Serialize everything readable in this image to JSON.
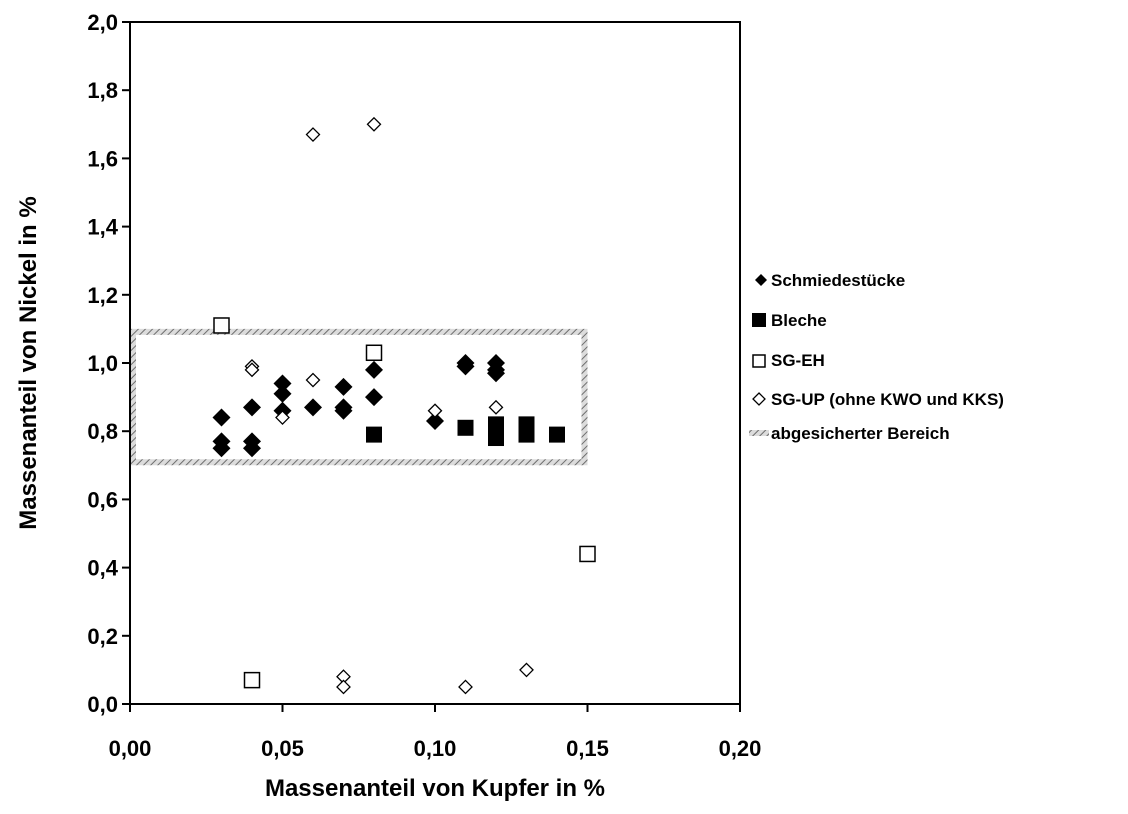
{
  "chart_data": {
    "type": "scatter",
    "title": "",
    "xlabel": "Massenanteil von Kupfer in %",
    "ylabel": "Massenanteil von Nickel in %",
    "xlim": [
      0,
      0.2
    ],
    "ylim": [
      0,
      2.0
    ],
    "xticks": [
      "0,00",
      "0,05",
      "0,10",
      "0,15",
      "0,20"
    ],
    "yticks": [
      "0,0",
      "0,2",
      "0,4",
      "0,6",
      "0,8",
      "1,0",
      "1,2",
      "1,4",
      "1,6",
      "1,8",
      "2,0"
    ],
    "xtick_values": [
      0,
      0.05,
      0.1,
      0.15,
      0.2
    ],
    "ytick_values": [
      0,
      0.2,
      0.4,
      0.6,
      0.8,
      1.0,
      1.2,
      1.4,
      1.6,
      1.8,
      2.0
    ],
    "grid": false,
    "legend_position": "right",
    "series": [
      {
        "name": "Schmiedestücke",
        "marker": "diamond-filled",
        "color": "#000000",
        "points": [
          [
            0.03,
            0.84
          ],
          [
            0.03,
            0.77
          ],
          [
            0.03,
            0.75
          ],
          [
            0.04,
            0.87
          ],
          [
            0.04,
            0.77
          ],
          [
            0.04,
            0.75
          ],
          [
            0.05,
            0.94
          ],
          [
            0.05,
            0.91
          ],
          [
            0.05,
            0.86
          ],
          [
            0.06,
            0.87
          ],
          [
            0.07,
            0.93
          ],
          [
            0.07,
            0.87
          ],
          [
            0.07,
            0.86
          ],
          [
            0.08,
            0.98
          ],
          [
            0.08,
            0.9
          ],
          [
            0.1,
            0.83
          ],
          [
            0.11,
            1.0
          ],
          [
            0.11,
            0.99
          ],
          [
            0.12,
            1.0
          ],
          [
            0.12,
            0.98
          ],
          [
            0.12,
            0.97
          ]
        ]
      },
      {
        "name": "Bleche",
        "marker": "square-filled",
        "color": "#000000",
        "points": [
          [
            0.08,
            0.79
          ],
          [
            0.11,
            0.81
          ],
          [
            0.12,
            0.82
          ],
          [
            0.12,
            0.8
          ],
          [
            0.12,
            0.78
          ],
          [
            0.13,
            0.82
          ],
          [
            0.13,
            0.79
          ],
          [
            0.14,
            0.79
          ]
        ]
      },
      {
        "name": "SG-EH",
        "marker": "square-open",
        "color": "#000000",
        "points": [
          [
            0.03,
            1.11
          ],
          [
            0.08,
            1.03
          ],
          [
            0.15,
            0.44
          ],
          [
            0.04,
            0.07
          ]
        ]
      },
      {
        "name": "SG-UP (ohne KWO und KKS)",
        "marker": "diamond-open",
        "color": "#000000",
        "points": [
          [
            0.06,
            1.67
          ],
          [
            0.08,
            1.7
          ],
          [
            0.04,
            0.99
          ],
          [
            0.04,
            0.98
          ],
          [
            0.06,
            0.95
          ],
          [
            0.05,
            0.84
          ],
          [
            0.1,
            0.86
          ],
          [
            0.12,
            0.87
          ],
          [
            0.07,
            0.08
          ],
          [
            0.07,
            0.05
          ],
          [
            0.11,
            0.05
          ],
          [
            0.13,
            0.1
          ]
        ]
      }
    ],
    "region": {
      "name": "abgesicherter Bereich",
      "x": [
        0,
        0.15
      ],
      "y": [
        0.7,
        1.1
      ],
      "style": "hatched-outline",
      "color": "#999999"
    }
  }
}
